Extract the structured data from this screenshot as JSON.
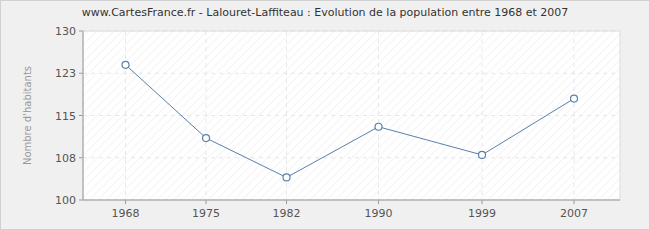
{
  "chart_data": {
    "type": "line",
    "title": "www.CartesFrance.fr - Lalouret-Laffiteau : Evolution de la population entre 1968 et 2007",
    "y_label": "Nombre d'habitants",
    "x": [
      1968,
      1975,
      1982,
      1990,
      1999,
      2007
    ],
    "values": [
      124,
      111,
      104,
      113,
      108,
      118
    ],
    "color": "#5a80aa",
    "marker": "circle",
    "xlim": [
      1964.3,
      2011
    ],
    "xticks": [
      1968,
      1975,
      1982,
      1990,
      1999,
      2007
    ],
    "ylim": [
      100,
      130
    ],
    "yticks": [
      100,
      {
        "value": 107.5,
        "label": "108"
      },
      115,
      {
        "value": 122.5,
        "label": "123"
      },
      130
    ],
    "grid": true
  }
}
